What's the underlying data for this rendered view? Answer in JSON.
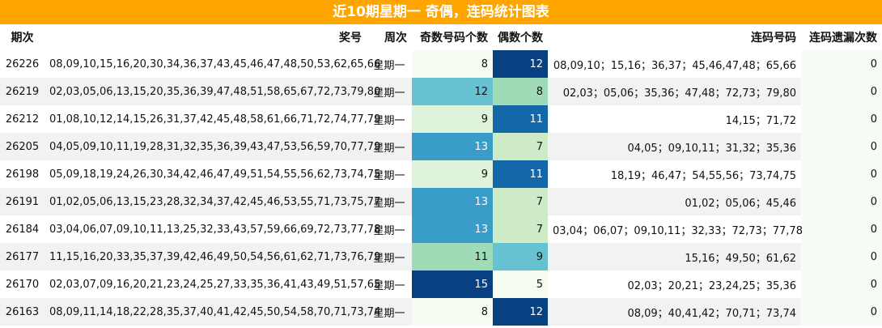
{
  "title": "近10期星期一 奇偶，连码统计图表",
  "headers": {
    "period": "期次",
    "numbers": "奖号",
    "weekday": "周次",
    "odd": "奇数号码个数",
    "even": "偶数个数",
    "consecutive": "连码号码",
    "missing": "连码遗漏次数"
  },
  "rows": [
    {
      "period": "26226",
      "numbers": "08,09,10,15,16,20,30,34,36,37,43,45,46,47,48,50,53,62,65,66",
      "weekday": "星期一",
      "odd": "8",
      "even": "12",
      "consecutive": "08,09,10；15,16；36,37；45,46,47,48；65,66",
      "missing": "0",
      "odd_color": "#f7fcf0",
      "even_color": "#084081"
    },
    {
      "period": "26219",
      "numbers": "02,03,05,06,13,15,20,35,36,39,47,48,51,58,65,67,72,73,79,80",
      "weekday": "星期一",
      "odd": "12",
      "even": "8",
      "consecutive": "02,03；05,06；35,36；47,48；72,73；79,80",
      "missing": "0",
      "odd_color": "#66c2d0",
      "even_color": "#a0dbb7"
    },
    {
      "period": "26212",
      "numbers": "01,08,10,12,14,15,26,31,37,42,45,48,58,61,66,71,72,74,77,79",
      "weekday": "星期一",
      "odd": "9",
      "even": "11",
      "consecutive": "14,15；71,72",
      "missing": "0",
      "odd_color": "#e0f3db",
      "even_color": "#1368aa"
    },
    {
      "period": "26205",
      "numbers": "04,05,09,10,11,19,28,31,32,35,36,39,43,47,53,56,59,70,77,79",
      "weekday": "星期一",
      "odd": "13",
      "even": "7",
      "consecutive": "04,05；09,10,11；31,32；35,36",
      "missing": "0",
      "odd_color": "#3a9cc8",
      "even_color": "#ccebc6"
    },
    {
      "period": "26198",
      "numbers": "05,09,18,19,24,26,30,34,42,46,47,49,51,54,55,56,62,73,74,75",
      "weekday": "星期一",
      "odd": "9",
      "even": "11",
      "consecutive": "18,19；46,47；54,55,56；73,74,75",
      "missing": "0",
      "odd_color": "#e0f3db",
      "even_color": "#1368aa"
    },
    {
      "period": "26191",
      "numbers": "01,02,05,06,13,15,23,28,32,34,37,42,45,46,53,55,71,73,75,77",
      "weekday": "星期一",
      "odd": "13",
      "even": "7",
      "consecutive": "01,02；05,06；45,46",
      "missing": "0",
      "odd_color": "#3a9cc8",
      "even_color": "#ccebc6"
    },
    {
      "period": "26184",
      "numbers": "03,04,06,07,09,10,11,13,25,32,33,43,57,59,66,69,72,73,77,78",
      "weekday": "星期一",
      "odd": "13",
      "even": "7",
      "consecutive": "03,04；06,07；09,10,11；32,33；72,73；77,78",
      "missing": "0",
      "odd_color": "#3a9cc8",
      "even_color": "#ccebc6"
    },
    {
      "period": "26177",
      "numbers": "11,15,16,20,33,35,37,39,42,46,49,50,54,56,61,62,71,73,76,79",
      "weekday": "星期一",
      "odd": "11",
      "even": "9",
      "consecutive": "15,16；49,50；61,62",
      "missing": "0",
      "odd_color": "#a0dbb7",
      "even_color": "#66c2d0"
    },
    {
      "period": "26170",
      "numbers": "02,03,07,09,16,20,21,23,24,25,27,33,35,36,41,43,49,51,57,65",
      "weekday": "星期一",
      "odd": "15",
      "even": "5",
      "consecutive": "02,03；20,21；23,24,25；35,36",
      "missing": "0",
      "odd_color": "#084081",
      "even_color": "#f7fcf0"
    },
    {
      "period": "26163",
      "numbers": "08,09,11,14,18,22,28,35,37,40,41,42,45,50,54,58,70,71,73,74",
      "weekday": "星期一",
      "odd": "8",
      "even": "12",
      "consecutive": "08,09；40,41,42；70,71；73,74",
      "missing": "0",
      "odd_color": "#f7fcf0",
      "even_color": "#084081"
    }
  ]
}
